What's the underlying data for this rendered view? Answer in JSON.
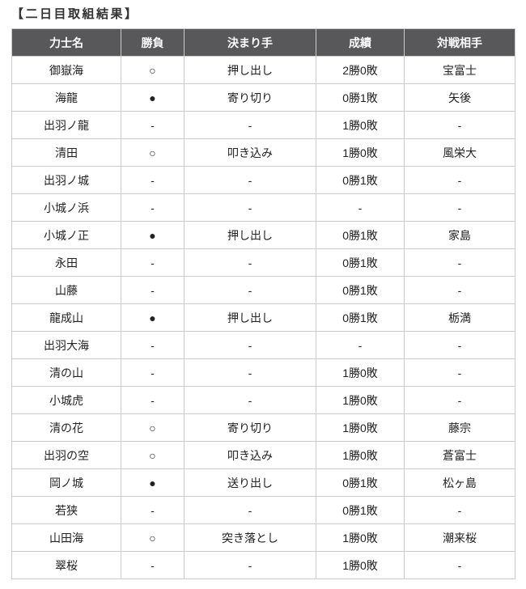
{
  "page": {
    "title": "【二日目取組結果】"
  },
  "colors": {
    "header_bg": "#58585a",
    "header_text": "#ffffff",
    "cell_text": "#222222",
    "border_inner": "#cccccc",
    "border_outer": "#aaaaaa",
    "title_text": "#333333"
  },
  "table": {
    "column_keys": [
      "rikishi-name",
      "result-mark",
      "kimarite",
      "record",
      "opponent"
    ],
    "headers": [
      "力士名",
      "勝負",
      "決まり手",
      "成績",
      "対戦相手"
    ],
    "rows": [
      [
        "御嶽海",
        "○",
        "押し出し",
        "2勝0敗",
        "宝富士"
      ],
      [
        "海龍",
        "●",
        "寄り切り",
        "0勝1敗",
        "矢後"
      ],
      [
        "出羽ノ龍",
        "-",
        "-",
        "1勝0敗",
        "-"
      ],
      [
        "清田",
        "○",
        "叩き込み",
        "1勝0敗",
        "風栄大"
      ],
      [
        "出羽ノ城",
        "-",
        "-",
        "0勝1敗",
        "-"
      ],
      [
        "小城ノ浜",
        "-",
        "-",
        "-",
        "-"
      ],
      [
        "小城ノ正",
        "●",
        "押し出し",
        "0勝1敗",
        "家島"
      ],
      [
        "永田",
        "-",
        "-",
        "0勝1敗",
        "-"
      ],
      [
        "山藤",
        "-",
        "-",
        "0勝1敗",
        "-"
      ],
      [
        "龍成山",
        "●",
        "押し出し",
        "0勝1敗",
        "栃満"
      ],
      [
        "出羽大海",
        "-",
        "-",
        "-",
        "-"
      ],
      [
        "清の山",
        "-",
        "-",
        "1勝0敗",
        "-"
      ],
      [
        "小城虎",
        "-",
        "-",
        "1勝0敗",
        "-"
      ],
      [
        "清の花",
        "○",
        "寄り切り",
        "1勝0敗",
        "藤宗"
      ],
      [
        "出羽の空",
        "○",
        "叩き込み",
        "1勝0敗",
        "蒼富士"
      ],
      [
        "岡ノ城",
        "●",
        "送り出し",
        "0勝1敗",
        "松ヶ島"
      ],
      [
        "若狭",
        "-",
        "-",
        "0勝1敗",
        "-"
      ],
      [
        "山田海",
        "○",
        "突き落とし",
        "1勝0敗",
        "潮来桜"
      ],
      [
        "翠桜",
        "-",
        "-",
        "1勝0敗",
        "-"
      ]
    ]
  }
}
